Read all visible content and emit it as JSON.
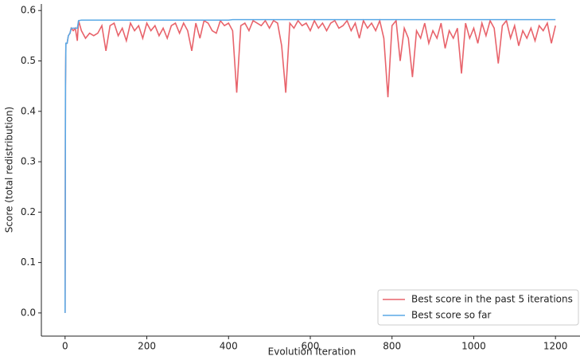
{
  "chart_data": {
    "type": "line",
    "x_label": "Evolution Iteration",
    "y_label": "Score (total redistribution)",
    "x": [
      0,
      1,
      2,
      5,
      8,
      12,
      15,
      20,
      25,
      30,
      33,
      40,
      50,
      60,
      70,
      80,
      90,
      100,
      110,
      120,
      130,
      140,
      150,
      160,
      170,
      180,
      190,
      200,
      210,
      220,
      230,
      240,
      250,
      260,
      270,
      280,
      290,
      300,
      310,
      320,
      330,
      340,
      350,
      360,
      370,
      380,
      390,
      400,
      410,
      420,
      430,
      440,
      450,
      460,
      470,
      480,
      490,
      500,
      510,
      520,
      530,
      540,
      550,
      560,
      570,
      580,
      590,
      600,
      610,
      620,
      630,
      640,
      650,
      660,
      670,
      680,
      690,
      700,
      710,
      720,
      730,
      740,
      750,
      760,
      770,
      780,
      790,
      800,
      810,
      820,
      830,
      840,
      850,
      860,
      870,
      880,
      890,
      900,
      910,
      920,
      930,
      940,
      950,
      960,
      970,
      980,
      990,
      1000,
      1010,
      1020,
      1030,
      1040,
      1050,
      1060,
      1070,
      1080,
      1090,
      1100,
      1110,
      1120,
      1130,
      1140,
      1150,
      1160,
      1170,
      1180,
      1190,
      1200
    ],
    "series": [
      {
        "name": "Best score in the past 5 iterations",
        "color": "#e8636b",
        "values": [
          0,
          0.45,
          0.535,
          0.535,
          0.55,
          0.555,
          0.565,
          0.56,
          0.565,
          0.54,
          0.58,
          0.56,
          0.545,
          0.555,
          0.55,
          0.555,
          0.57,
          0.52,
          0.57,
          0.575,
          0.55,
          0.565,
          0.54,
          0.575,
          0.56,
          0.57,
          0.545,
          0.575,
          0.56,
          0.57,
          0.55,
          0.565,
          0.545,
          0.57,
          0.575,
          0.555,
          0.575,
          0.56,
          0.52,
          0.575,
          0.545,
          0.58,
          0.575,
          0.56,
          0.555,
          0.58,
          0.57,
          0.575,
          0.56,
          0.437,
          0.57,
          0.575,
          0.56,
          0.58,
          0.575,
          0.57,
          0.58,
          0.565,
          0.58,
          0.575,
          0.53,
          0.437,
          0.575,
          0.565,
          0.58,
          0.57,
          0.575,
          0.56,
          0.58,
          0.565,
          0.575,
          0.56,
          0.575,
          0.58,
          0.565,
          0.57,
          0.58,
          0.56,
          0.575,
          0.545,
          0.58,
          0.565,
          0.575,
          0.56,
          0.58,
          0.545,
          0.428,
          0.57,
          0.58,
          0.5,
          0.565,
          0.545,
          0.468,
          0.56,
          0.545,
          0.575,
          0.535,
          0.56,
          0.545,
          0.575,
          0.525,
          0.56,
          0.545,
          0.565,
          0.475,
          0.575,
          0.545,
          0.565,
          0.535,
          0.575,
          0.55,
          0.58,
          0.565,
          0.495,
          0.57,
          0.58,
          0.545,
          0.57,
          0.53,
          0.56,
          0.545,
          0.565,
          0.54,
          0.57,
          0.56,
          0.575,
          0.535,
          0.57
        ]
      },
      {
        "name": "Best score so far",
        "color": "#5aa9e6",
        "values": [
          0,
          0.45,
          0.535,
          0.535,
          0.55,
          0.555,
          0.565,
          0.565,
          0.565,
          0.565,
          0.58,
          0.581,
          0.581,
          0.581,
          0.581,
          0.581,
          0.581,
          0.581,
          0.581,
          0.581,
          0.581,
          0.581,
          0.581,
          0.581,
          0.581,
          0.581,
          0.581,
          0.581,
          0.581,
          0.581,
          0.581,
          0.581,
          0.581,
          0.581,
          0.581,
          0.581,
          0.581,
          0.581,
          0.581,
          0.581,
          0.581,
          0.581,
          0.581,
          0.581,
          0.581,
          0.581,
          0.581,
          0.581,
          0.582,
          0.582,
          0.582,
          0.582,
          0.582,
          0.582,
          0.582,
          0.582,
          0.582,
          0.582,
          0.582,
          0.582,
          0.582,
          0.582,
          0.582,
          0.582,
          0.582,
          0.582,
          0.582,
          0.582,
          0.582,
          0.582,
          0.582,
          0.582,
          0.582,
          0.582,
          0.582,
          0.582,
          0.582,
          0.582,
          0.582,
          0.582,
          0.582,
          0.582,
          0.582,
          0.582,
          0.582,
          0.582,
          0.582,
          0.582,
          0.582,
          0.582,
          0.582,
          0.582,
          0.582,
          0.582,
          0.582,
          0.582,
          0.582,
          0.582,
          0.582,
          0.582,
          0.582,
          0.582,
          0.582,
          0.582,
          0.582,
          0.582,
          0.582,
          0.582,
          0.582,
          0.582,
          0.582,
          0.582,
          0.582,
          0.582,
          0.582,
          0.582,
          0.582,
          0.582,
          0.582,
          0.582,
          0.582,
          0.582,
          0.582,
          0.582,
          0.582,
          0.582,
          0.582,
          0.582
        ]
      }
    ],
    "xlim": [
      -58,
      1260
    ],
    "ylim": [
      -0.046,
      0.613
    ],
    "xticks": [
      0,
      200,
      400,
      600,
      800,
      1000,
      1200
    ],
    "yticks": [
      {
        "value": 0,
        "label": "0.0"
      },
      0.1,
      0.2,
      0.3,
      0.4,
      0.5,
      0.6
    ],
    "legend": "lower right",
    "grid": false
  }
}
